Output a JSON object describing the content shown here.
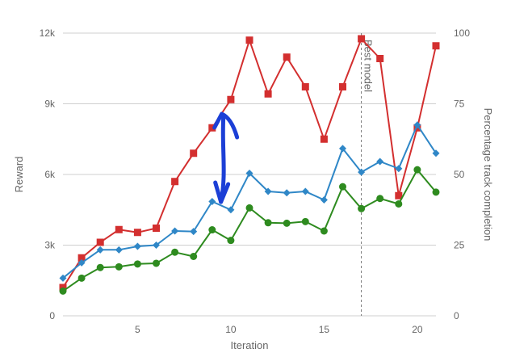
{
  "chart_data": {
    "type": "line",
    "xlabel": "Iteration",
    "ylabel": "Reward",
    "y2label": "Percentage track completion",
    "xlim": [
      1,
      21
    ],
    "ylim": [
      0,
      12000
    ],
    "y2lim": [
      0,
      100
    ],
    "x_ticks": [
      5,
      10,
      15,
      20
    ],
    "y_ticks": [
      0,
      3000,
      6000,
      9000,
      12000
    ],
    "y_tick_labels": [
      "0",
      "3k",
      "6k",
      "9k",
      "12k"
    ],
    "y2_ticks": [
      0,
      25,
      50,
      75,
      100
    ],
    "y2_tick_labels": [
      "0",
      "25",
      "50",
      "75",
      "100"
    ],
    "grid": true,
    "x": [
      1,
      2,
      3,
      4,
      5,
      6,
      7,
      8,
      9,
      10,
      11,
      12,
      13,
      14,
      15,
      16,
      17,
      18,
      19,
      20,
      21
    ],
    "series": [
      {
        "color": "#d32f2f",
        "marker": "square",
        "axis": "right",
        "values": [
          10,
          20.5,
          26,
          30.5,
          29.5,
          31,
          47.5,
          57.5,
          66.5,
          76.5,
          97.5,
          78.5,
          91.5,
          81,
          62.5,
          81,
          98,
          91,
          42.5,
          66.5,
          95.5
        ]
      },
      {
        "color": "#2f87c7",
        "marker": "diamond",
        "axis": "left",
        "values": [
          1600,
          2250,
          2800,
          2800,
          2950,
          3000,
          3600,
          3580,
          4850,
          4500,
          6050,
          5280,
          5220,
          5280,
          4920,
          7100,
          6100,
          6550,
          6250,
          8100,
          6900
        ]
      },
      {
        "color": "#2e8b1f",
        "marker": "circle",
        "axis": "left",
        "values": [
          1050,
          1600,
          2050,
          2080,
          2200,
          2230,
          2700,
          2520,
          3650,
          3200,
          4580,
          3950,
          3930,
          4000,
          3600,
          5480,
          4550,
          4980,
          4750,
          6200,
          5250
        ]
      }
    ],
    "annotations": [
      {
        "text": "Best model",
        "x": 17,
        "style": "dashed-vertical-line"
      },
      {
        "type": "hand-drawn-double-arrow",
        "color": "#1c3fd6",
        "x": 9.6
      }
    ]
  }
}
